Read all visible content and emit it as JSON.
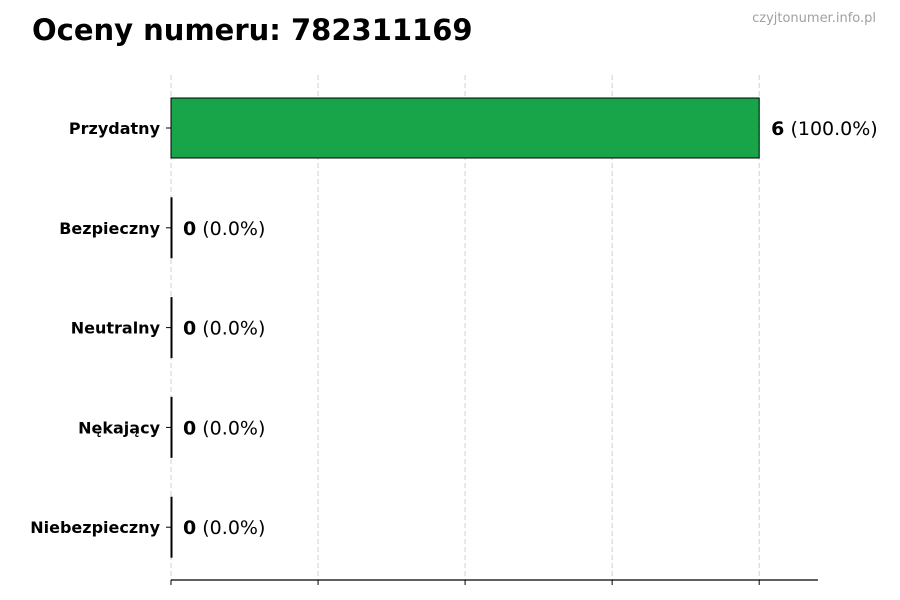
{
  "chart_data": {
    "type": "bar",
    "orientation": "horizontal",
    "title": "Oceny numeru: 782311169",
    "watermark": "czyjtonumer.info.pl",
    "categories": [
      "Przydatny",
      "Bezpieczny",
      "Neutralny",
      "Nękający",
      "Niebezpieczny"
    ],
    "values": [
      6,
      0,
      0,
      0,
      0
    ],
    "value_labels": [
      "6",
      "0",
      "0",
      "0",
      "0"
    ],
    "percent_labels": [
      "(100.0%)",
      "(0.0%)",
      "(0.0%)",
      "(0.0%)",
      "(0.0%)"
    ],
    "xlim": [
      0,
      6.6
    ],
    "x_ticks": [
      0,
      1.5,
      3,
      4.5,
      6
    ],
    "grid": "vertical dashed",
    "xlabel": "",
    "ylabel": "",
    "bar_color": "#18a54a",
    "edge_color": "#000000",
    "grid_color": "#d0d0d0",
    "watermark_color": "#a0a0a0"
  }
}
